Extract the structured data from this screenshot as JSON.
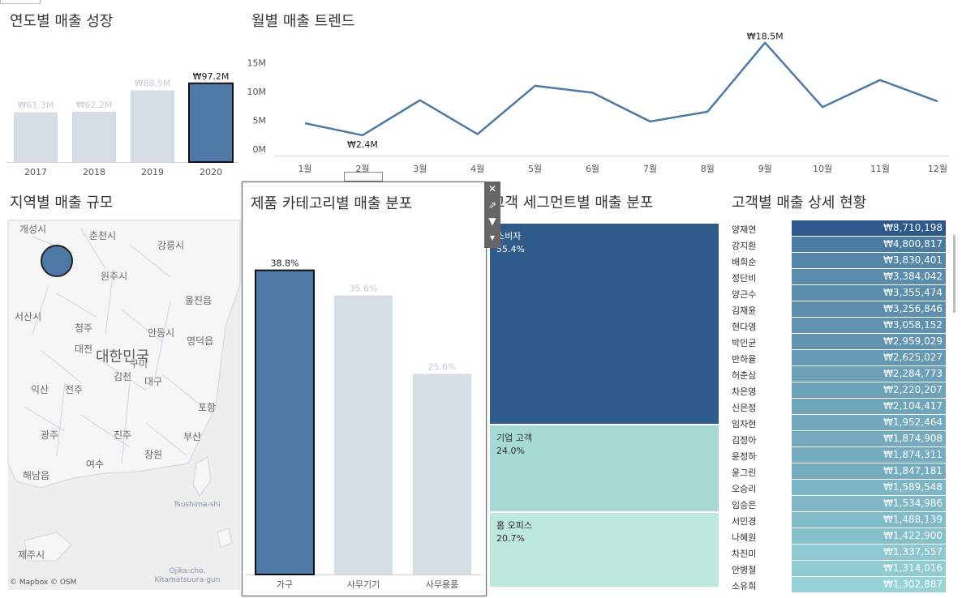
{
  "titles": {
    "yearly": "연도별 매출 성장",
    "monthly": "월별 매출 트렌드",
    "region": "지역별 매출 규모",
    "category": "제품 카테고리별 매출 분포",
    "segment": "고객 세그먼트별 매출 분포",
    "customer": "고객별 매출 상세 현황"
  },
  "colors": {
    "accent": "#4e79a7",
    "muted": "#d5dce4",
    "segment_dark": "#2f5b8a",
    "segment_mid": "#a7dad5",
    "segment_light": "#bde8dd"
  },
  "chart_data": [
    {
      "type": "bar",
      "categories": [
        "2017",
        "2018",
        "2019",
        "2020"
      ],
      "values": [
        61.3,
        62.2,
        88.5,
        97.2
      ],
      "labels": [
        "₩61.3M",
        "₩62.2M",
        "₩88.5M",
        "₩97.2M"
      ],
      "highlight": "2020",
      "ylim": [
        0,
        100
      ]
    },
    {
      "type": "line",
      "x": [
        "1월",
        "2월",
        "3월",
        "4월",
        "5월",
        "6월",
        "7월",
        "8월",
        "9월",
        "10월",
        "11월",
        "12월"
      ],
      "values": [
        4.5,
        2.4,
        8.5,
        2.6,
        11.0,
        9.8,
        4.8,
        6.5,
        18.5,
        7.3,
        12.0,
        8.3
      ],
      "yticks": [
        "0M",
        "5M",
        "10M",
        "15M"
      ],
      "ylim": [
        0,
        19
      ],
      "annotations": [
        {
          "x": "9월",
          "text": "₩18.5M"
        },
        {
          "x": "2월",
          "text": "₩2.4M"
        }
      ]
    },
    {
      "type": "bar",
      "categories": [
        "가구",
        "사무기기",
        "사무용품"
      ],
      "values": [
        38.8,
        35.6,
        25.6
      ],
      "labels": [
        "38.8%",
        "35.6%",
        "25.6%"
      ],
      "highlight": "가구",
      "ylim": [
        0,
        40
      ]
    },
    {
      "type": "table",
      "segments": [
        {
          "name": "소비자",
          "pct": 55.4,
          "label": "55.4%"
        },
        {
          "name": "기업 고객",
          "pct": 24.0,
          "label": "24.0%"
        },
        {
          "name": "홈 오피스",
          "pct": 20.7,
          "label": "20.7%"
        }
      ]
    },
    {
      "type": "bar",
      "categories": [
        "양재연",
        "강지환",
        "배희순",
        "정단비",
        "양근수",
        "김재윤",
        "현다영",
        "박민균",
        "반하율",
        "허춘삼",
        "차은영",
        "신은정",
        "임자현",
        "김정아",
        "윤정하",
        "윤그린",
        "오승리",
        "임승은",
        "서민경",
        "나혜원",
        "차진미",
        "안병철",
        "소유희"
      ],
      "values": [
        8710198,
        4800817,
        3830401,
        3384042,
        3355474,
        3256846,
        3058152,
        2959029,
        2625027,
        2284773,
        2220207,
        2104417,
        1952464,
        1874908,
        1874311,
        1847181,
        1589548,
        1534986,
        1488139,
        1422900,
        1337557,
        1314016,
        1302887
      ],
      "labels": [
        "₩8,710,198",
        "₩4,800,817",
        "₩3,830,401",
        "₩3,384,042",
        "₩3,355,474",
        "₩3,256,846",
        "₩3,058,152",
        "₩2,959,029",
        "₩2,625,027",
        "₩2,284,773",
        "₩2,220,207",
        "₩2,104,417",
        "₩1,952,464",
        "₩1,874,908",
        "₩1,874,311",
        "₩1,847,181",
        "₩1,589,548",
        "₩1,534,986",
        "₩1,488,139",
        "₩1,422,900",
        "₩1,337,557",
        "₩1,314,016",
        "₩1,302,887"
      ]
    }
  ],
  "map": {
    "cities": [
      "개성시",
      "춘천시",
      "강릉시",
      "원주시",
      "울진읍",
      "서산시",
      "청주",
      "안동시",
      "영덕읍",
      "대전",
      "대한민국",
      "대구",
      "전주",
      "익산",
      "김천",
      "구미",
      "포항",
      "광주",
      "진주",
      "창원",
      "여수",
      "해남읍",
      "부산",
      "제주시",
      "Tsushima-shi",
      "Ojika-cho, Kitamatsuura-gun"
    ],
    "marker": "서울",
    "attribution": "© Mapbox © OSM"
  },
  "tools": {
    "close": "✕",
    "open": "⇗",
    "filter": "▼",
    "more": "▾"
  }
}
